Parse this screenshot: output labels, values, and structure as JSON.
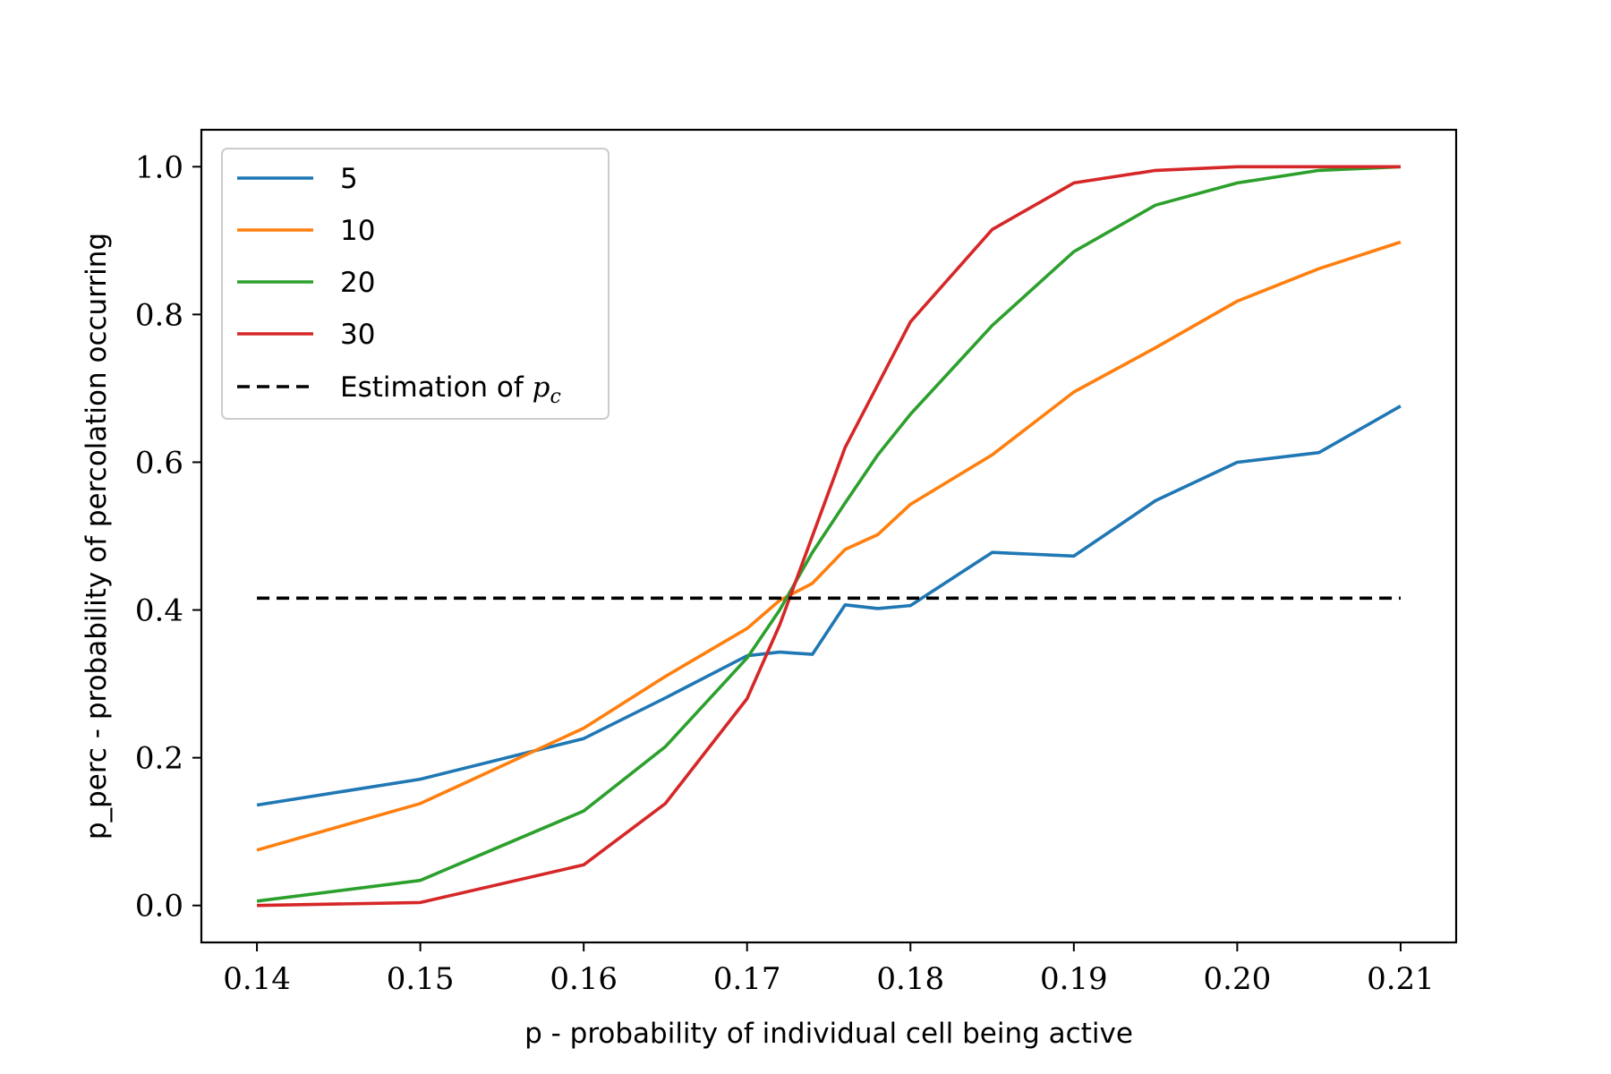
{
  "chart_data": {
    "type": "line",
    "xlabel": "p - probability of individual cell being active",
    "ylabel": "p_perc - probability of percolation occurring",
    "xlim": [
      0.1366,
      0.2134
    ],
    "ylim": [
      -0.05,
      1.05
    ],
    "x_ticks": [
      "0.14",
      "0.15",
      "0.16",
      "0.17",
      "0.18",
      "0.19",
      "0.20",
      "0.21"
    ],
    "y_ticks": [
      "0.0",
      "0.2",
      "0.4",
      "0.6",
      "0.8",
      "1.0"
    ],
    "grid": false,
    "legend_position": "upper-left",
    "x": [
      0.14,
      0.15,
      0.16,
      0.165,
      0.17,
      0.172,
      0.174,
      0.176,
      0.178,
      0.18,
      0.185,
      0.19,
      0.195,
      0.2,
      0.205,
      0.21
    ],
    "series": [
      {
        "name": "5",
        "color": "#1f77b4",
        "values": [
          0.136,
          0.171,
          0.226,
          0.281,
          0.338,
          0.343,
          0.34,
          0.407,
          0.402,
          0.406,
          0.478,
          0.473,
          0.548,
          0.6,
          0.613,
          0.676
        ]
      },
      {
        "name": "10",
        "color": "#ff7f0e",
        "values": [
          0.075,
          0.138,
          0.24,
          0.31,
          0.375,
          0.413,
          0.436,
          0.482,
          0.502,
          0.543,
          0.61,
          0.695,
          0.755,
          0.818,
          0.862,
          0.898
        ]
      },
      {
        "name": "20",
        "color": "#2ca02c",
        "values": [
          0.006,
          0.034,
          0.128,
          0.215,
          0.335,
          0.4,
          0.478,
          0.545,
          0.61,
          0.665,
          0.785,
          0.885,
          0.948,
          0.978,
          0.995,
          1.0
        ]
      },
      {
        "name": "30",
        "color": "#d62728",
        "values": [
          0.0,
          0.004,
          0.055,
          0.138,
          0.28,
          0.38,
          0.5,
          0.62,
          0.705,
          0.79,
          0.915,
          0.978,
          0.995,
          1.0,
          1.0,
          1.0
        ]
      }
    ],
    "reference_line": {
      "name_prefix": "Estimation of ",
      "name_math": "p",
      "name_sub": "c",
      "y": 0.416,
      "x_range": [
        0.14,
        0.21
      ],
      "color": "#000000",
      "style": "dashed"
    }
  }
}
